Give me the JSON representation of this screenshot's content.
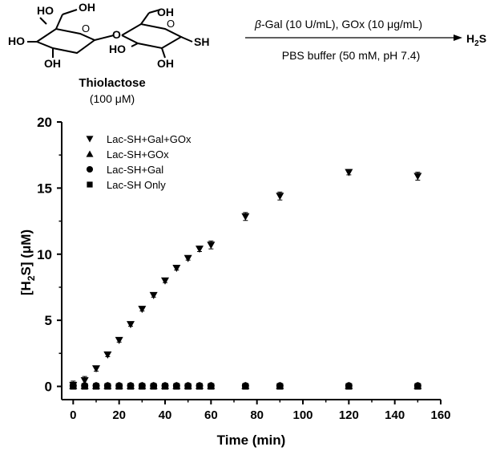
{
  "scheme": {
    "molecule_name": "Thiolactose",
    "molecule_conc": "(100 μM)",
    "atoms": {
      "ho1": "HO",
      "oh1": "OH",
      "ho2": "HO",
      "o_link": "O",
      "oh_top2": "OH",
      "ho3": "HO",
      "oh2": "OH",
      "oh3": "OH",
      "sh": "SH",
      "o_ring1": "O",
      "o_ring2": "O"
    },
    "conditions_top_prefix": "β",
    "conditions_top": "-Gal (10 U/mL), GOx (10 μg/mL)",
    "conditions_bottom": "PBS buffer (50 mM, pH 7.4)",
    "product_main": "H",
    "product_sub": "2",
    "product_tail": "S"
  },
  "chart_data": {
    "type": "scatter",
    "xlabel": "Time (min)",
    "ylabel_parts": [
      "[H",
      "2",
      "S] (μM)"
    ],
    "xlim": [
      -5,
      160
    ],
    "ylim": [
      -1,
      20
    ],
    "xticks": [
      0,
      20,
      40,
      60,
      80,
      100,
      120,
      140,
      160
    ],
    "yticks": [
      0,
      5,
      10,
      15,
      20
    ],
    "grid": false,
    "legend_position": "top-left",
    "series": [
      {
        "name": "Lac-SH+Gal+GOx",
        "marker": "triangle-down",
        "x": [
          0,
          5,
          10,
          15,
          20,
          25,
          30,
          35,
          40,
          45,
          50,
          55,
          60,
          75,
          90,
          120,
          150
        ],
        "y": [
          0.1,
          0.45,
          1.35,
          2.4,
          3.5,
          4.7,
          5.85,
          6.9,
          8.0,
          8.95,
          9.7,
          10.4,
          10.7,
          12.85,
          14.4,
          16.2,
          15.9
        ],
        "err": [
          0.3,
          0.3,
          0.2,
          0.15,
          0.15,
          0.15,
          0.15,
          0.15,
          0.15,
          0.15,
          0.15,
          0.2,
          0.3,
          0.3,
          0.3,
          0.2,
          0.3
        ]
      },
      {
        "name": "Lac-SH+GOx",
        "marker": "triangle-up",
        "x": [
          0,
          5,
          10,
          15,
          20,
          25,
          30,
          35,
          40,
          45,
          50,
          55,
          60,
          75,
          90,
          120,
          150
        ],
        "y": [
          0.05,
          0.05,
          0.05,
          0.05,
          0.05,
          0.05,
          0.05,
          0.05,
          0.05,
          0.05,
          0.05,
          0.05,
          0.05,
          0.05,
          0.05,
          0.05,
          0.05
        ]
      },
      {
        "name": "Lac-SH+Gal",
        "marker": "circle",
        "x": [
          0,
          5,
          10,
          15,
          20,
          25,
          30,
          35,
          40,
          45,
          50,
          55,
          60,
          75,
          90,
          120,
          150
        ],
        "y": [
          0.05,
          0.05,
          0.05,
          0.05,
          0.05,
          0.05,
          0.05,
          0.05,
          0.05,
          0.05,
          0.05,
          0.05,
          0.05,
          0.05,
          0.05,
          0.05,
          0.05
        ]
      },
      {
        "name": "Lac-SH Only",
        "marker": "square",
        "x": [
          0,
          5,
          10,
          15,
          20,
          25,
          30,
          35,
          40,
          45,
          50,
          55,
          60,
          75,
          90,
          120,
          150
        ],
        "y": [
          0.0,
          0.0,
          0.0,
          0.0,
          0.0,
          0.0,
          0.0,
          0.0,
          0.0,
          0.0,
          0.0,
          0.0,
          0.0,
          0.0,
          0.0,
          0.0,
          0.0
        ]
      }
    ]
  }
}
